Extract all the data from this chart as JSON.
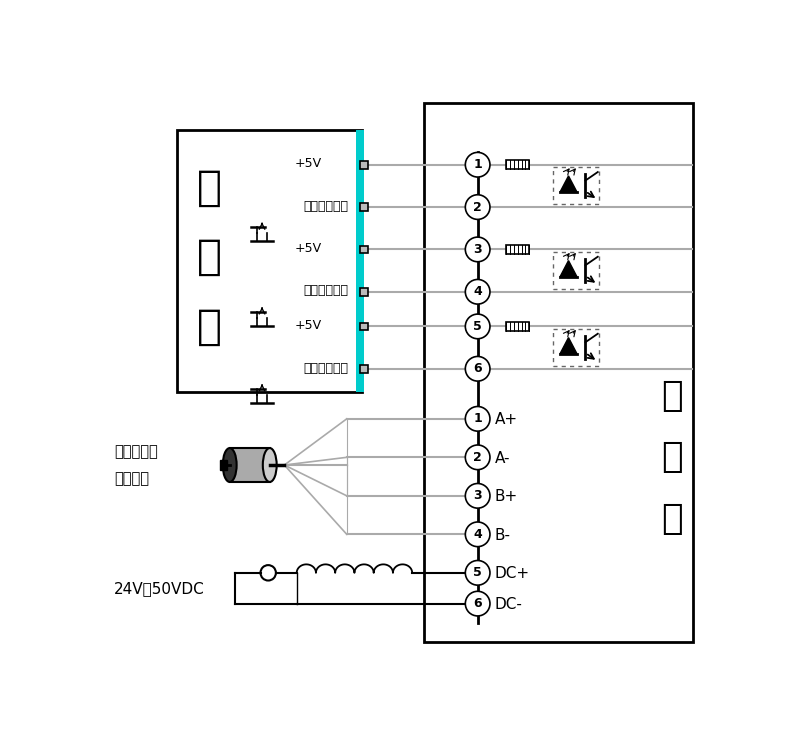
{
  "bg_color": "#ffffff",
  "line_color": "#aaaaaa",
  "black": "#000000",
  "cyan": "#00cccc",
  "ctrl_label_chars": [
    "控",
    "制",
    "机"
  ],
  "driver_label_chars": [
    "驱",
    "动",
    "器"
  ],
  "motor_label_line1": "两相混合式",
  "motor_label_line2": "步进电机",
  "voltage_label": "24V～50VDC",
  "v5_label": "+5V",
  "signal_labels": [
    "脉冲信号输入",
    "方向信号输入",
    "脱机信号输入"
  ],
  "motor_terminals": [
    "A+",
    "A-",
    "B+",
    "B-",
    "DC+",
    "DC-"
  ]
}
